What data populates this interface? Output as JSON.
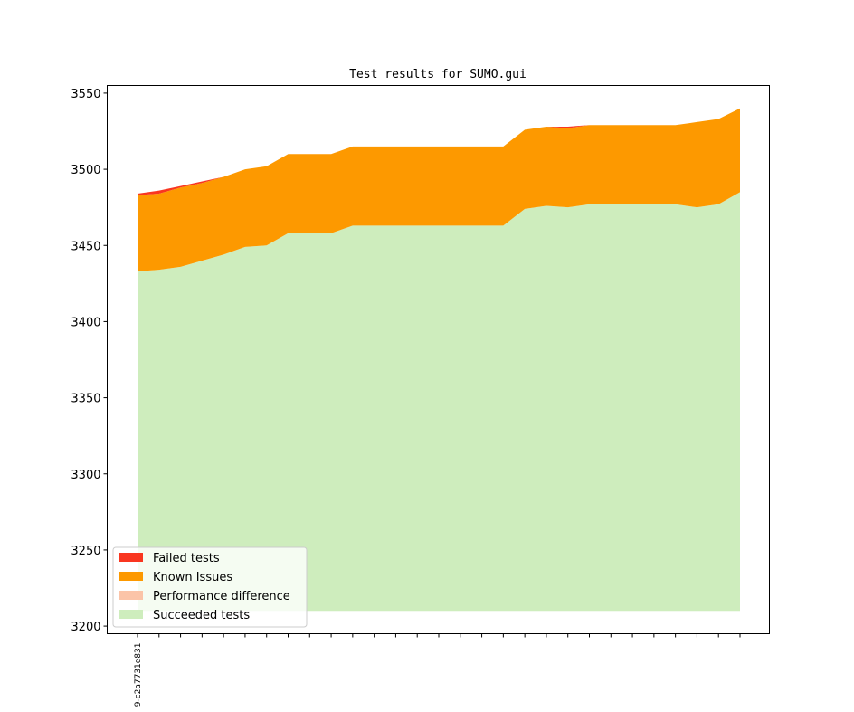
{
  "chart_data": {
    "type": "area",
    "title": "Test results for SUMO.gui",
    "xlabel": "",
    "ylabel": "",
    "ylim": [
      3195,
      3555
    ],
    "y_ticks": [
      3200,
      3250,
      3300,
      3350,
      3400,
      3450,
      3500,
      3550
    ],
    "x_tick_labels": [
      "9-c2a7731e831"
    ],
    "x_tick_count": 29,
    "baseline": 3210,
    "grid": false,
    "legend_position": "lower-left",
    "colors": {
      "failed": "#f93620",
      "known": "#fd9900",
      "performance": "#fbc4a8",
      "succeeded": "#ceedbd"
    },
    "series": [
      {
        "name": "Succeeded tests",
        "values": [
          3433,
          3434,
          3436,
          3440,
          3444,
          3449,
          3450,
          3458,
          3458,
          3458,
          3463,
          3463,
          3463,
          3463,
          3463,
          3463,
          3463,
          3463,
          3474,
          3476,
          3475,
          3477,
          3477,
          3477,
          3477,
          3477,
          3475,
          3477,
          3485
        ]
      },
      {
        "name": "Performance difference",
        "values": [
          0,
          0,
          0,
          0,
          0,
          0,
          0,
          0,
          0,
          0,
          0,
          0,
          0,
          0,
          0,
          0,
          0,
          0,
          0,
          0,
          0,
          0,
          0,
          0,
          0,
          0,
          0,
          0,
          0
        ]
      },
      {
        "name": "Known Issues",
        "values": [
          50,
          50,
          52,
          51,
          51,
          51,
          52,
          52,
          52,
          52,
          52,
          52,
          52,
          52,
          52,
          52,
          52,
          52,
          52,
          52,
          52,
          52,
          52,
          52,
          52,
          52,
          56,
          56,
          55
        ]
      },
      {
        "name": "Failed tests",
        "values": [
          1,
          2,
          1,
          1,
          0,
          0,
          0,
          0,
          0,
          0,
          0,
          0,
          0,
          0,
          0,
          0,
          0,
          0,
          0,
          0,
          1,
          0,
          0,
          0,
          0,
          0,
          0,
          0,
          0
        ]
      }
    ],
    "legend": [
      "Failed tests",
      "Known Issues",
      "Performance difference",
      "Succeeded tests"
    ]
  }
}
